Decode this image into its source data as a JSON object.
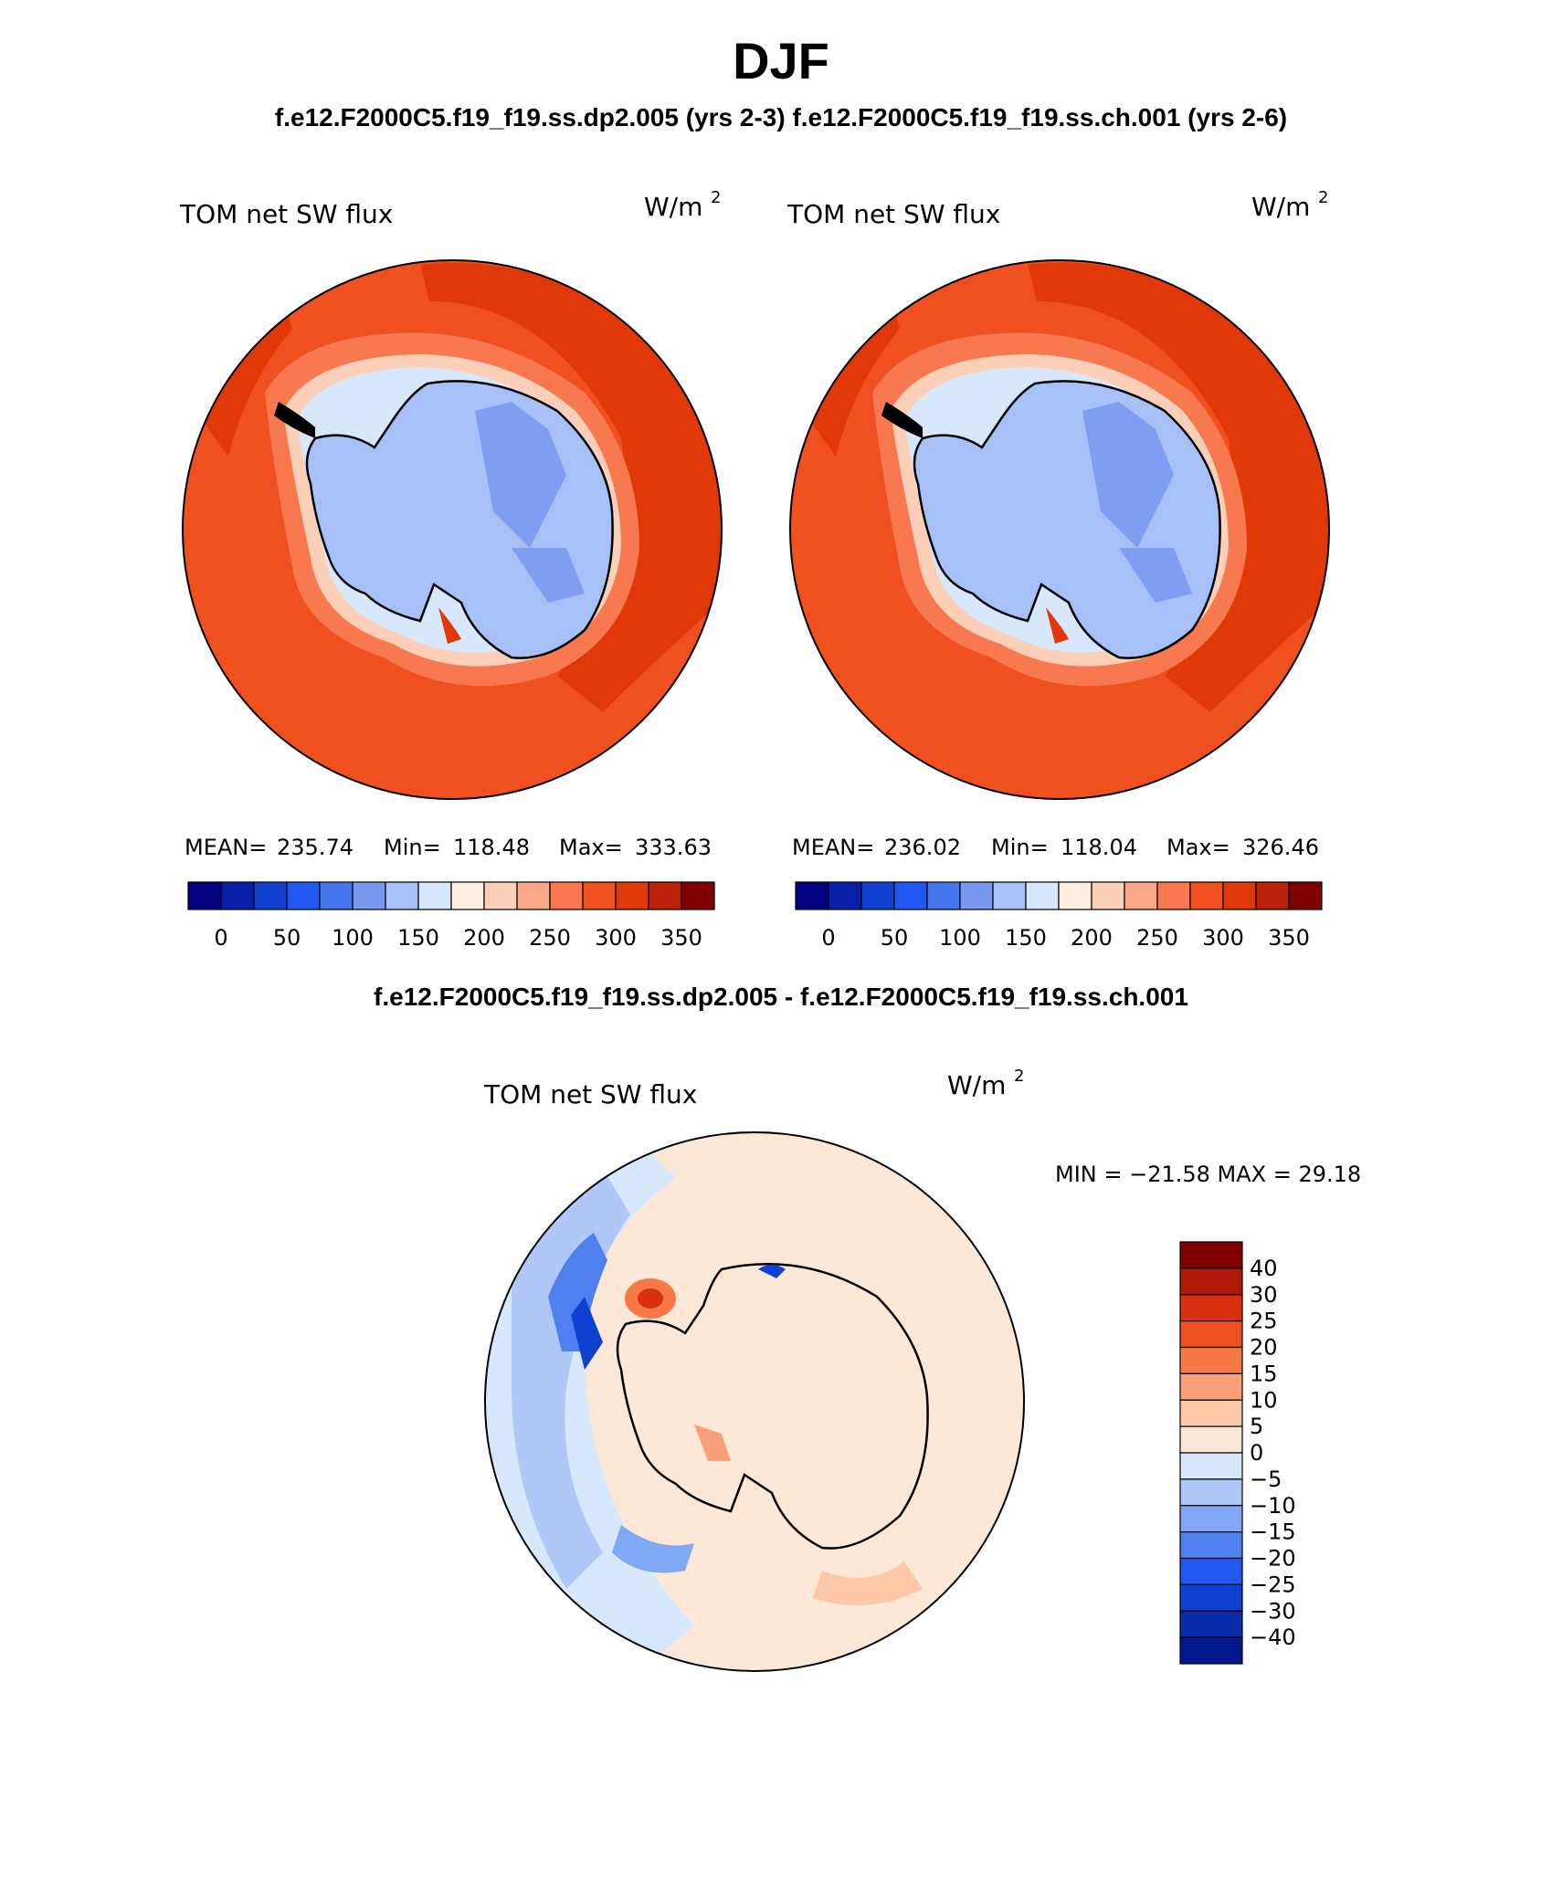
{
  "title": "DJF",
  "subtitle": "f.e12.F2000C5.f19_f19.ss.dp2.005 (yrs 2-3)   f.e12.F2000C5.f19_f19.ss.ch.001 (yrs 2-6)",
  "diff_title": "f.e12.F2000C5.f19_f19.ss.dp2.005 - f.e12.F2000C5.f19_f19.ss.ch.001",
  "colors": {
    "abs_palette": [
      "#000080",
      "#0820a8",
      "#1040d0",
      "#2058f0",
      "#4878f0",
      "#7898f0",
      "#a8c0f8",
      "#d8e8fc",
      "#fdeee0",
      "#fcd0b8",
      "#f8a888",
      "#f87850",
      "#f05020",
      "#e03808",
      "#b82008",
      "#800000"
    ],
    "diff_palette": [
      "#00188c",
      "#0a2aa8",
      "#1040d0",
      "#2058f0",
      "#5080f0",
      "#80a8f4",
      "#b0c8f8",
      "#d8e8fc",
      "#fde8d8",
      "#fcc8a8",
      "#f8a078",
      "#f87848",
      "#f05020",
      "#d83010",
      "#b01808",
      "#800000"
    ],
    "coastline": "#000000"
  },
  "chart_data": [
    {
      "type": "heatmap",
      "projection": "south-polar-stereographic",
      "panel": "top-left",
      "title": "TOM net SW flux",
      "units": "W/m",
      "units_exponent": "2",
      "stats": {
        "mean": 235.74,
        "min": 118.48,
        "max": 333.63
      },
      "stats_labels": {
        "mean": "MEAN=",
        "min": "Min=",
        "max": "Max="
      },
      "stats_text": {
        "mean": "235.74",
        "min": "118.48",
        "max": "333.63"
      },
      "colorbar": {
        "orientation": "horizontal",
        "ticks": [
          0,
          50,
          100,
          150,
          200,
          250,
          300,
          350
        ],
        "tick_labels": [
          "0",
          "50",
          "100",
          "150",
          "200",
          "250",
          "300",
          "350"
        ],
        "range": [
          -25,
          375
        ],
        "bin_count": 16
      },
      "field_bands": [
        {
          "region": "antarctic-interior",
          "value": 140
        },
        {
          "region": "east-antarctic-plateau-streaks",
          "value": 120
        },
        {
          "region": "coastal-sea-ice-ring",
          "value": 210
        },
        {
          "region": "southern-ocean",
          "value": 310
        },
        {
          "region": "pacific-indian-sector-max",
          "value": 330
        }
      ]
    },
    {
      "type": "heatmap",
      "projection": "south-polar-stereographic",
      "panel": "top-right",
      "title": "TOM net SW flux",
      "units": "W/m",
      "units_exponent": "2",
      "stats": {
        "mean": 236.02,
        "min": 118.04,
        "max": 326.46
      },
      "stats_labels": {
        "mean": "MEAN=",
        "min": "Min=",
        "max": "Max="
      },
      "stats_text": {
        "mean": "236.02",
        "min": "118.04",
        "max": "326.46"
      },
      "colorbar": {
        "orientation": "horizontal",
        "ticks": [
          0,
          50,
          100,
          150,
          200,
          250,
          300,
          350
        ],
        "tick_labels": [
          "0",
          "50",
          "100",
          "150",
          "200",
          "250",
          "300",
          "350"
        ],
        "range": [
          -25,
          375
        ],
        "bin_count": 16
      },
      "field_bands": [
        {
          "region": "antarctic-interior",
          "value": 140
        },
        {
          "region": "east-antarctic-plateau-streaks",
          "value": 120
        },
        {
          "region": "coastal-sea-ice-ring",
          "value": 210
        },
        {
          "region": "southern-ocean",
          "value": 310
        },
        {
          "region": "pacific-indian-sector-max",
          "value": 326
        }
      ]
    },
    {
      "type": "heatmap",
      "projection": "south-polar-stereographic",
      "panel": "bottom-difference",
      "title": "TOM net SW flux",
      "units": "W/m",
      "units_exponent": "2",
      "stats": {
        "min": -21.58,
        "max": 29.18
      },
      "stats_text": "MIN = −21.58 MAX =   29.18",
      "colorbar": {
        "orientation": "vertical",
        "levels": [
          40,
          30,
          25,
          20,
          15,
          10,
          5,
          0,
          -5,
          -10,
          -15,
          -20,
          -25,
          -30,
          -40
        ],
        "level_labels": [
          "40",
          "30",
          "25",
          "20",
          "15",
          "10",
          "5",
          "0",
          "−5",
          "−10",
          "−15",
          "−20",
          "−25",
          "−30",
          "−40"
        ],
        "bin_count": 16
      },
      "anomalies": [
        {
          "region": "bellingshausen-sea",
          "value": -22
        },
        {
          "region": "weddell-sea-blob",
          "value": 29
        },
        {
          "region": "ross-ice-shelf",
          "value": 15
        },
        {
          "region": "east-antarctica-coast",
          "value": -20
        },
        {
          "region": "southern-ocean-background",
          "value": 3
        },
        {
          "region": "atlantic-sector",
          "value": -8
        }
      ]
    }
  ]
}
